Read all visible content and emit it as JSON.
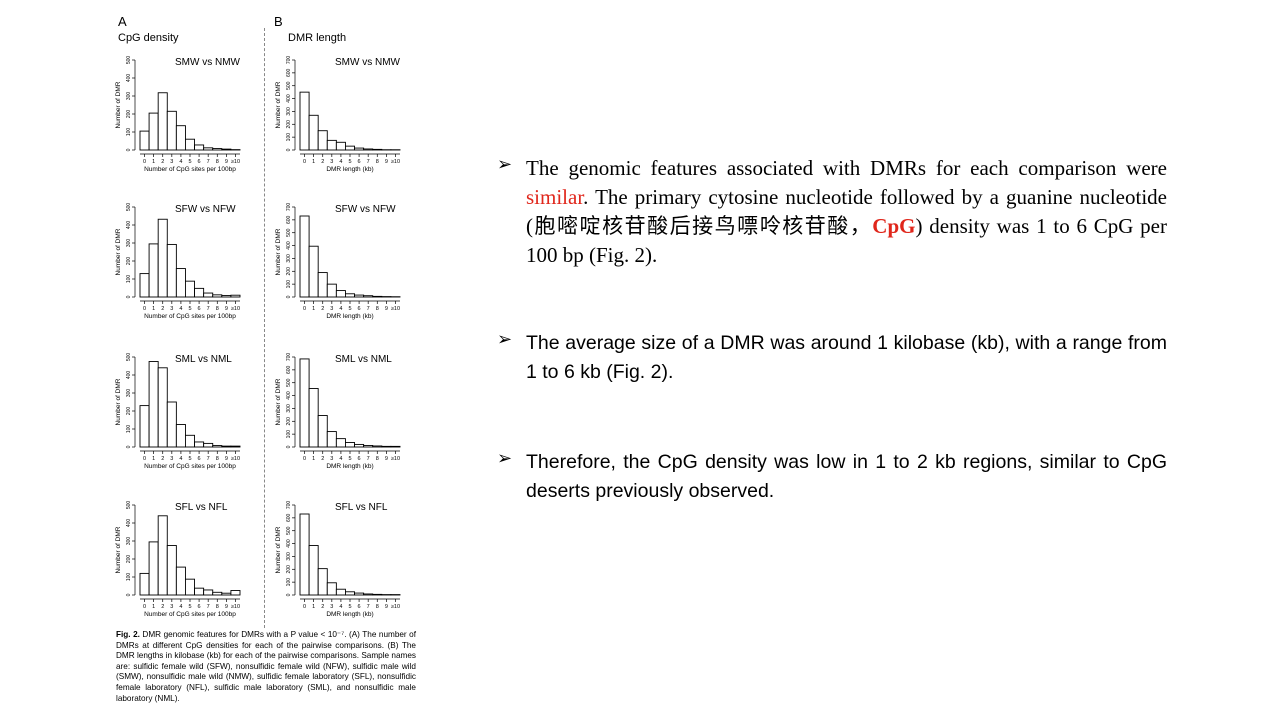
{
  "figure": {
    "panel_a": {
      "letter": "A",
      "title": "CpG density"
    },
    "panel_b": {
      "letter": "B",
      "title": "DMR length"
    },
    "caption": {
      "label": "Fig. 2.",
      "text": "DMR genomic features for DMRs with a P value < 10⁻⁷. (A) The number of DMRs at different CpG densities for each of the pairwise comparisons. (B) The DMR lengths in kilobase (kb) for each of the pairwise comparisons. Sample names are: sulfidic female wild (SFW), nonsulfidic female wild (NFW), sulfidic male wild (SMW), nonsulfidic male wild (NMW), sulfidic female laboratory (SFL), nonsulfidic female laboratory (NFL), sulfidic male laboratory (SML), and nonsulfidic male laboratory (NML)."
    }
  },
  "chart_data": [
    {
      "type": "bar",
      "panel": "A",
      "title": "SMW vs NMW",
      "xlabel": "Number of CpG sites per 100bp",
      "ylabel": "Number of DMR",
      "categories": [
        "0",
        "1",
        "2",
        "3",
        "4",
        "5",
        "6",
        "7",
        "8",
        "9",
        "≥10"
      ],
      "values": [
        105,
        205,
        318,
        215,
        135,
        60,
        28,
        12,
        8,
        5,
        2
      ],
      "ylim": [
        0,
        500
      ],
      "yticks": [
        0,
        100,
        200,
        300,
        400,
        500
      ]
    },
    {
      "type": "bar",
      "panel": "A",
      "title": "SFW vs NFW",
      "xlabel": "Number of CpG sites per 100bp",
      "ylabel": "Number of DMR",
      "categories": [
        "0",
        "1",
        "2",
        "3",
        "4",
        "5",
        "6",
        "7",
        "8",
        "9",
        "≥10"
      ],
      "values": [
        130,
        295,
        432,
        292,
        158,
        88,
        48,
        22,
        12,
        8,
        10
      ],
      "ylim": [
        0,
        500
      ],
      "yticks": [
        0,
        100,
        200,
        300,
        400,
        500
      ]
    },
    {
      "type": "bar",
      "panel": "A",
      "title": "SML vs NML",
      "xlabel": "Number of CpG sites per 100bp",
      "ylabel": "Number of DMR",
      "categories": [
        "0",
        "1",
        "2",
        "3",
        "4",
        "5",
        "6",
        "7",
        "8",
        "9",
        "≥10"
      ],
      "values": [
        230,
        475,
        440,
        250,
        125,
        65,
        28,
        20,
        8,
        5,
        5
      ],
      "ylim": [
        0,
        500
      ],
      "yticks": [
        0,
        100,
        200,
        300,
        400,
        500
      ]
    },
    {
      "type": "bar",
      "panel": "A",
      "title": "SFL vs NFL",
      "xlabel": "Number of CpG sites per 100bp",
      "ylabel": "Number of DMR",
      "categories": [
        "0",
        "1",
        "2",
        "3",
        "4",
        "5",
        "6",
        "7",
        "8",
        "9",
        "≥10"
      ],
      "values": [
        120,
        295,
        440,
        275,
        155,
        88,
        38,
        28,
        15,
        10,
        25
      ],
      "ylim": [
        0,
        500
      ],
      "yticks": [
        0,
        100,
        200,
        300,
        400,
        500
      ]
    },
    {
      "type": "bar",
      "panel": "B",
      "title": "SMW vs NMW",
      "xlabel": "DMR length (kb)",
      "ylabel": "Number of DMR",
      "categories": [
        "0",
        "1",
        "2",
        "3",
        "4",
        "5",
        "6",
        "7",
        "8",
        "9",
        "≥10"
      ],
      "values": [
        450,
        270,
        150,
        75,
        60,
        30,
        15,
        8,
        5,
        2,
        2
      ],
      "ylim": [
        0,
        700
      ],
      "yticks": [
        0,
        100,
        200,
        300,
        400,
        500,
        600,
        700
      ]
    },
    {
      "type": "bar",
      "panel": "B",
      "title": "SFW vs NFW",
      "xlabel": "DMR length (kb)",
      "ylabel": "Number of DMR",
      "categories": [
        "0",
        "1",
        "2",
        "3",
        "4",
        "5",
        "6",
        "7",
        "8",
        "9",
        "≥10"
      ],
      "values": [
        630,
        395,
        190,
        100,
        50,
        25,
        15,
        10,
        5,
        3,
        2
      ],
      "ylim": [
        0,
        700
      ],
      "yticks": [
        0,
        100,
        200,
        300,
        400,
        500,
        600,
        700
      ]
    },
    {
      "type": "bar",
      "panel": "B",
      "title": "SML vs NML",
      "xlabel": "DMR length (kb)",
      "ylabel": "Number of DMR",
      "categories": [
        "0",
        "1",
        "2",
        "3",
        "4",
        "5",
        "6",
        "7",
        "8",
        "9",
        "≥10"
      ],
      "values": [
        685,
        455,
        245,
        120,
        65,
        35,
        20,
        12,
        8,
        5,
        5
      ],
      "ylim": [
        0,
        700
      ],
      "yticks": [
        0,
        100,
        200,
        300,
        400,
        500,
        600,
        700
      ]
    },
    {
      "type": "bar",
      "panel": "B",
      "title": "SFL vs NFL",
      "xlabel": "DMR length (kb)",
      "ylabel": "Number of DMR",
      "categories": [
        "0",
        "1",
        "2",
        "3",
        "4",
        "5",
        "6",
        "7",
        "8",
        "9",
        "≥10"
      ],
      "values": [
        630,
        385,
        205,
        95,
        45,
        25,
        15,
        8,
        5,
        3,
        3
      ],
      "ylim": [
        0,
        700
      ],
      "yticks": [
        0,
        100,
        200,
        300,
        400,
        500,
        600,
        700
      ]
    }
  ],
  "bullets": {
    "marker": "➢",
    "b1": {
      "part1": "The genomic features associated with DMRs for each comparison were ",
      "highlight": "similar",
      "part2": ". The primary cytosine nucleotide followed by a guanine nucleotide (胞嘧啶核苷酸后接鸟嘌呤核苷酸，",
      "cpg": "CpG",
      "part3": ") density was 1 to 6 CpG per 100 bp (Fig. 2)."
    },
    "b2": "The average size of a DMR was around 1 kilobase (kb), with a range from 1 to 6 kb (Fig. 2).",
    "b3": "Therefore, the CpG density was low in 1 to 2 kb regions, similar to CpG deserts previously observed.",
    "colors": {
      "highlight": "#e0261b"
    }
  }
}
